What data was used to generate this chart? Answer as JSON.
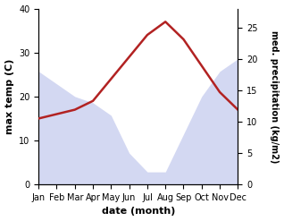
{
  "months": [
    "Jan",
    "Feb",
    "Mar",
    "Apr",
    "May",
    "Jun",
    "Jul",
    "Aug",
    "Sep",
    "Oct",
    "Nov",
    "Dec"
  ],
  "month_indices": [
    0,
    1,
    2,
    3,
    4,
    5,
    6,
    7,
    8,
    9,
    10,
    11
  ],
  "temperature": [
    15,
    16,
    17,
    19,
    24,
    29,
    34,
    37,
    33,
    27,
    21,
    17
  ],
  "precipitation": [
    18,
    16,
    14,
    13,
    11,
    5,
    2,
    2,
    8,
    14,
    18,
    20
  ],
  "temp_color": "#b22222",
  "precip_color": "#b0b8e8",
  "precip_alpha": 0.55,
  "temp_ylim": [
    0,
    40
  ],
  "precip_ylim": [
    0,
    28
  ],
  "temp_yticks": [
    0,
    10,
    20,
    30,
    40
  ],
  "precip_yticks": [
    0,
    5,
    10,
    15,
    20,
    25
  ],
  "ylabel_left": "max temp (C)",
  "ylabel_right": "med. precipitation (kg/m2)",
  "xlabel": "date (month)",
  "xlabel_fontweight": "bold",
  "ylabel_fontweight": "bold",
  "fig_width": 3.18,
  "fig_height": 2.47,
  "dpi": 100
}
